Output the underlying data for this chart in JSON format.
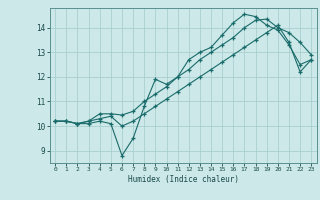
{
  "xlabel": "Humidex (Indice chaleur)",
  "bg_color": "#cce8e8",
  "grid_color": "#aacece",
  "line_color": "#1a6b6b",
  "xlim": [
    -0.5,
    23.5
  ],
  "ylim": [
    8.5,
    14.8
  ],
  "yticks": [
    9,
    10,
    11,
    12,
    13,
    14
  ],
  "xticks": [
    0,
    1,
    2,
    3,
    4,
    5,
    6,
    7,
    8,
    9,
    10,
    11,
    12,
    13,
    14,
    15,
    16,
    17,
    18,
    19,
    20,
    21,
    22,
    23
  ],
  "line1_x": [
    0,
    1,
    2,
    3,
    4,
    5,
    6,
    7,
    8,
    9,
    10,
    11,
    12,
    13,
    14,
    15,
    16,
    17,
    18,
    19,
    20,
    21,
    22,
    23
  ],
  "line1_y": [
    10.2,
    10.2,
    10.1,
    10.1,
    10.2,
    10.1,
    8.8,
    9.5,
    10.8,
    11.9,
    11.7,
    12.0,
    12.7,
    13.0,
    13.2,
    13.7,
    14.2,
    14.55,
    14.45,
    14.1,
    13.9,
    13.3,
    12.5,
    12.7
  ],
  "line2_x": [
    0,
    1,
    2,
    3,
    4,
    5,
    6,
    7,
    8,
    9,
    10,
    11,
    12,
    13,
    14,
    15,
    16,
    17,
    18,
    19,
    20,
    21,
    22,
    23
  ],
  "line2_y": [
    10.2,
    10.2,
    10.1,
    10.2,
    10.3,
    10.4,
    10.0,
    10.2,
    10.5,
    10.8,
    11.1,
    11.4,
    11.7,
    12.0,
    12.3,
    12.6,
    12.9,
    13.2,
    13.5,
    13.8,
    14.1,
    13.4,
    12.2,
    12.7
  ],
  "line3_x": [
    0,
    1,
    2,
    3,
    4,
    5,
    6,
    7,
    8,
    9,
    10,
    11,
    12,
    13,
    14,
    15,
    16,
    17,
    18,
    19,
    20,
    21,
    22,
    23
  ],
  "line3_y": [
    10.2,
    10.2,
    10.1,
    10.2,
    10.5,
    10.5,
    10.45,
    10.6,
    11.0,
    11.3,
    11.6,
    12.0,
    12.3,
    12.7,
    13.0,
    13.3,
    13.6,
    14.0,
    14.3,
    14.35,
    14.0,
    13.8,
    13.4,
    12.9
  ]
}
